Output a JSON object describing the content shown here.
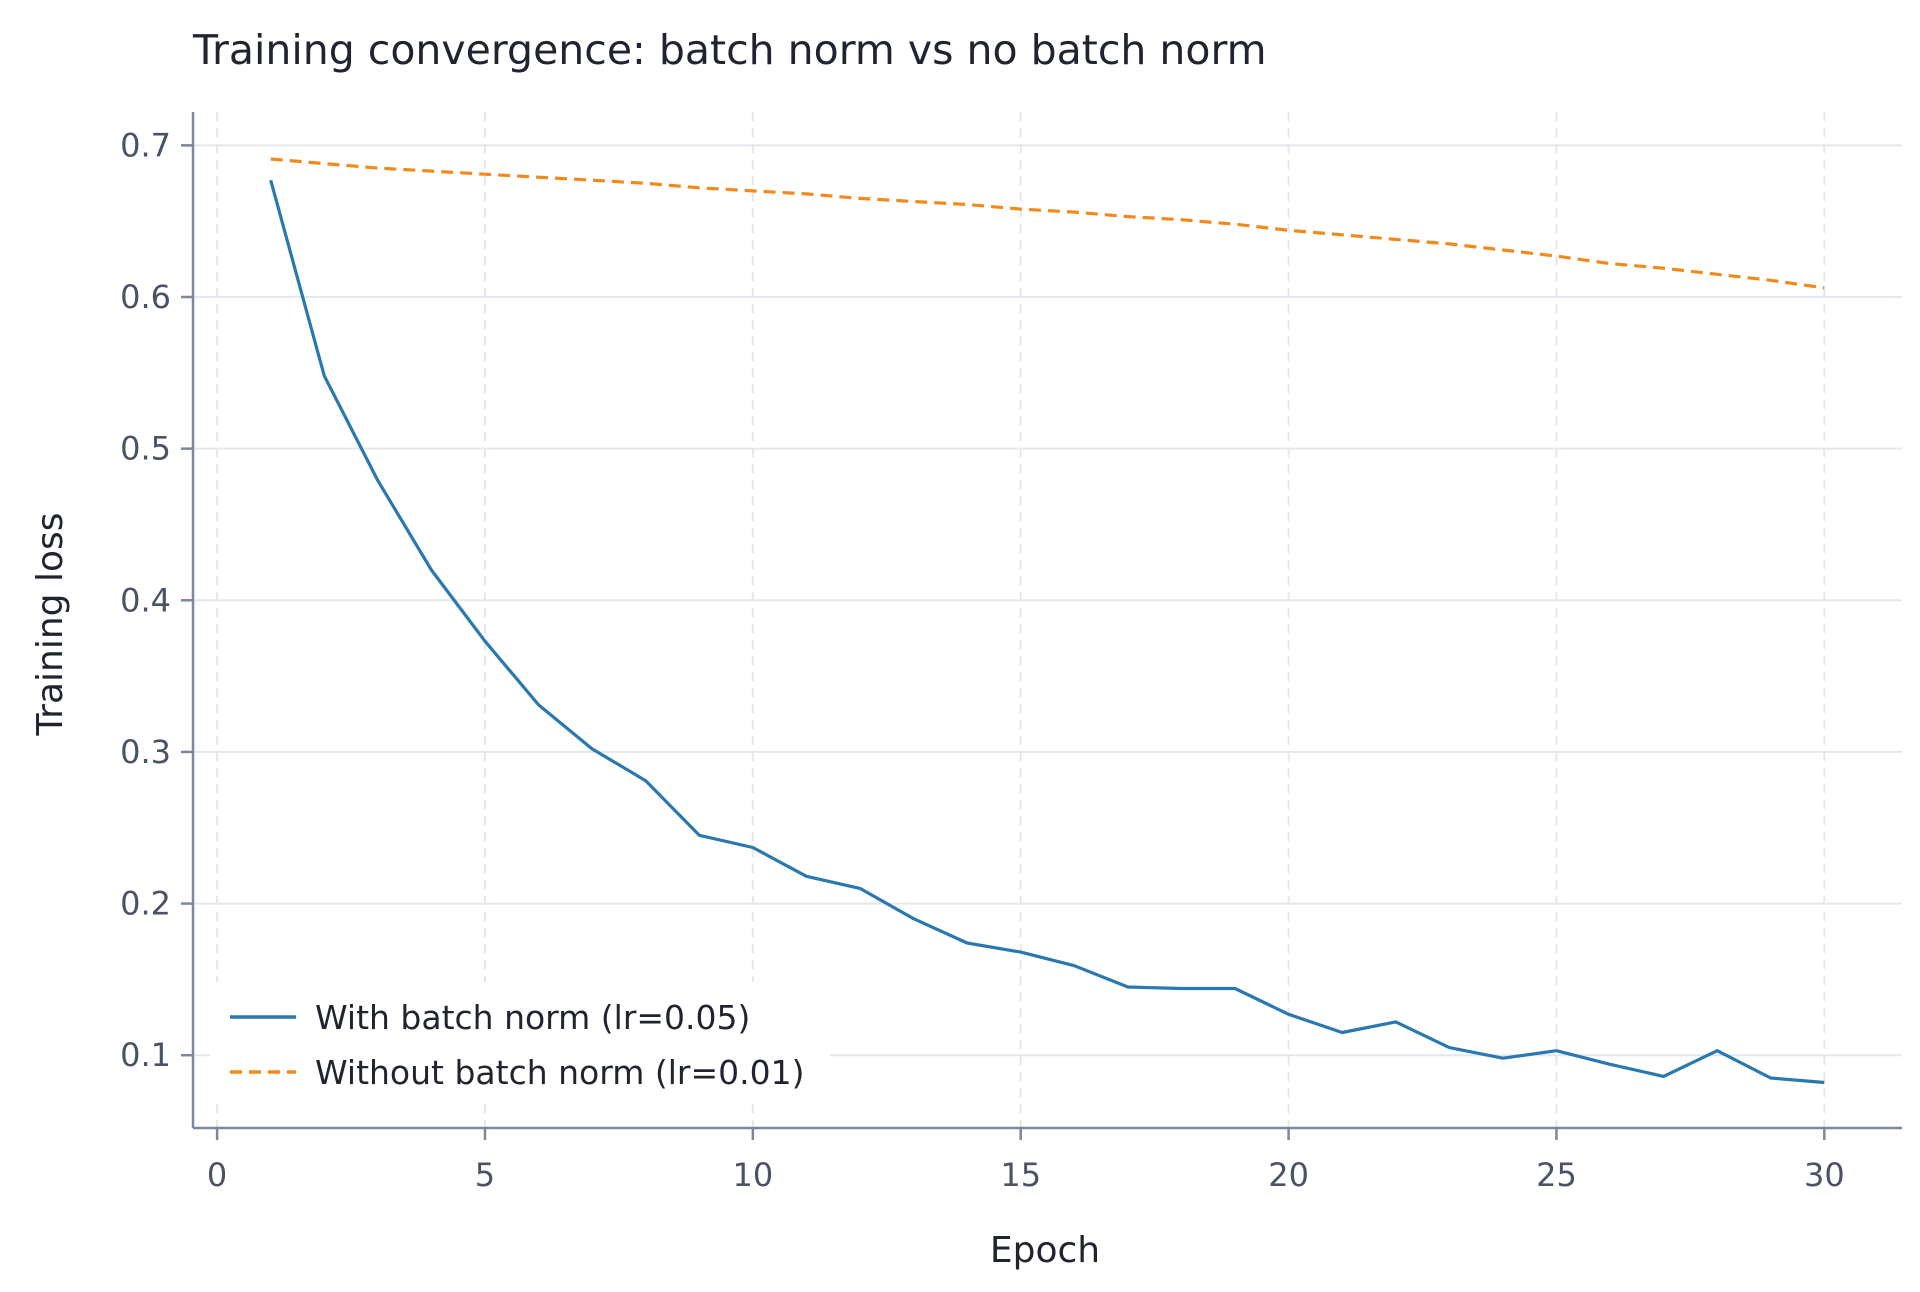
{
  "chart_data": {
    "type": "line",
    "title": "Training convergence: batch norm vs no batch norm",
    "xlabel": "Epoch",
    "ylabel": "Training loss",
    "xlim": [
      -0.45,
      31.45
    ],
    "ylim": [
      0.052,
      0.722
    ],
    "xticks": [
      0,
      5,
      10,
      15,
      20,
      25,
      30
    ],
    "yticks": [
      0.1,
      0.2,
      0.3,
      0.4,
      0.5,
      0.6,
      0.7
    ],
    "xtick_labels": [
      "0",
      "5",
      "10",
      "15",
      "20",
      "25",
      "30"
    ],
    "ytick_labels": [
      "0.1",
      "0.2",
      "0.3",
      "0.4",
      "0.5",
      "0.6",
      "0.7"
    ],
    "grid": true,
    "legend_position": "lower-left",
    "x": [
      1,
      2,
      3,
      4,
      5,
      6,
      7,
      8,
      9,
      10,
      11,
      12,
      13,
      14,
      15,
      16,
      17,
      18,
      19,
      20,
      21,
      22,
      23,
      24,
      25,
      26,
      27,
      28,
      29,
      30
    ],
    "series": [
      {
        "name": "With batch norm (lr=0.05)",
        "color": "#2a78b0",
        "style": "solid",
        "values": [
          0.677,
          0.548,
          0.479,
          0.42,
          0.373,
          0.331,
          0.302,
          0.281,
          0.245,
          0.237,
          0.218,
          0.21,
          0.19,
          0.174,
          0.168,
          0.159,
          0.145,
          0.144,
          0.144,
          0.127,
          0.115,
          0.122,
          0.105,
          0.098,
          0.103,
          0.094,
          0.086,
          0.103,
          0.085,
          0.082
        ]
      },
      {
        "name": "Without batch norm (lr=0.01)",
        "color": "#f28a1b",
        "style": "dashed",
        "values": [
          0.691,
          0.688,
          0.685,
          0.683,
          0.681,
          0.679,
          0.677,
          0.675,
          0.672,
          0.67,
          0.668,
          0.665,
          0.663,
          0.661,
          0.658,
          0.656,
          0.653,
          0.651,
          0.648,
          0.644,
          0.641,
          0.638,
          0.635,
          0.631,
          0.627,
          0.622,
          0.619,
          0.615,
          0.611,
          0.606
        ]
      }
    ]
  }
}
